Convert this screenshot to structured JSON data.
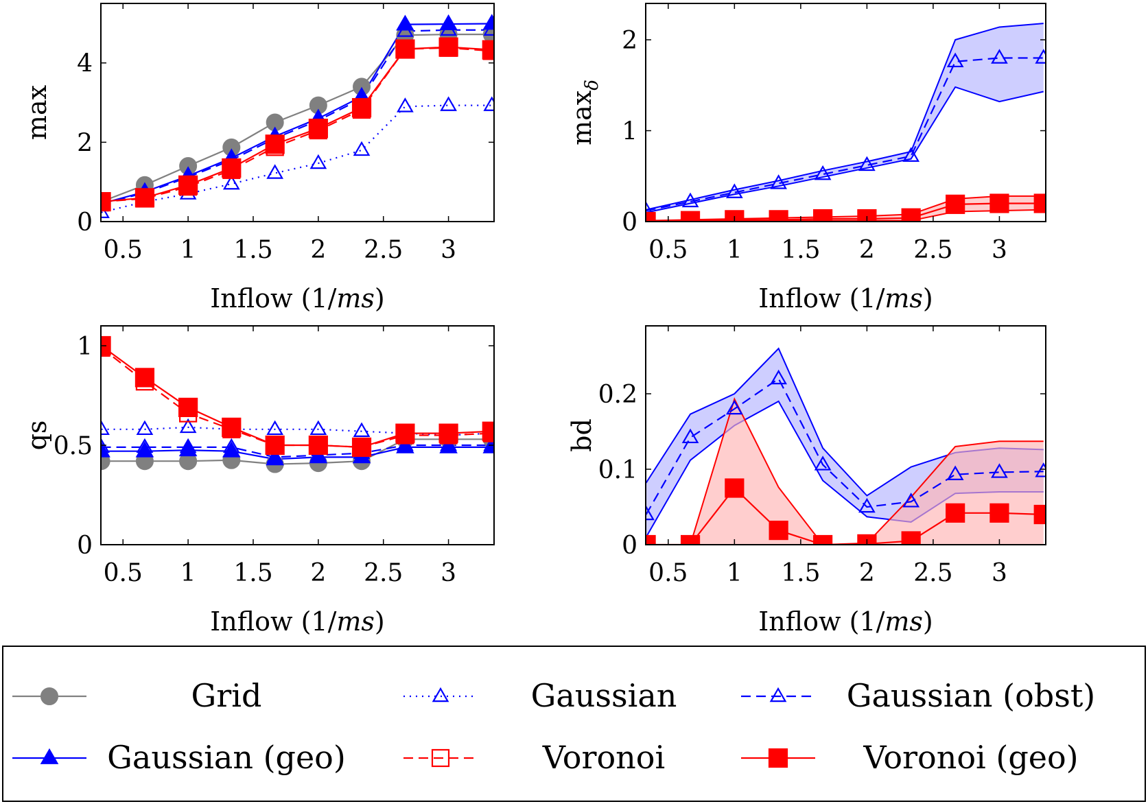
{
  "x": [
    0.333,
    0.667,
    1.0,
    1.333,
    1.667,
    2.0,
    2.333,
    2.667,
    3.0,
    3.333
  ],
  "colors": {
    "grid": "#808080",
    "gaussian": "#0000ff",
    "voronoi": "#ff0000",
    "blue_fill": "#b3b3ff",
    "red_fill": "#ffb3b3"
  },
  "legend": {
    "items": [
      {
        "key": "grid",
        "label": "Grid"
      },
      {
        "key": "gaussian",
        "label": "Gaussian"
      },
      {
        "key": "gaussian_obst",
        "label": "Gaussian (obst)"
      },
      {
        "key": "gaussian_geo",
        "label": "Gaussian (geo)"
      },
      {
        "key": "voronoi",
        "label": "Voronoi"
      },
      {
        "key": "voronoi_geo",
        "label": "Voronoi (geo)"
      }
    ]
  },
  "chart_data": [
    {
      "id": "max",
      "type": "line",
      "xlabel": "Inflow (1/ms)",
      "ylabel": "max",
      "xlim": [
        0.33,
        3.35
      ],
      "ylim": [
        0,
        5.5
      ],
      "xticks": [
        0.5,
        1,
        1.5,
        2,
        2.5,
        3
      ],
      "xtick_labels": [
        "0.5",
        "1",
        "1.5",
        "2",
        "2.5",
        "3"
      ],
      "yticks": [
        0,
        2,
        4
      ],
      "ytick_labels": [
        "0",
        "2",
        "4"
      ],
      "series": [
        {
          "name": "Grid",
          "key": "grid",
          "values": [
            0.5,
            0.92,
            1.4,
            1.87,
            2.5,
            2.93,
            3.4,
            4.7,
            4.72,
            4.72
          ]
        },
        {
          "name": "Gaussian",
          "key": "gaussian",
          "values": [
            0.23,
            0.5,
            0.7,
            0.95,
            1.22,
            1.47,
            1.8,
            2.9,
            2.93,
            2.93
          ]
        },
        {
          "name": "Gaussian (obst)",
          "key": "gaussian_obst",
          "values": [
            0.45,
            0.72,
            1.12,
            1.55,
            2.1,
            2.55,
            3.1,
            4.8,
            4.83,
            4.83
          ]
        },
        {
          "name": "Gaussian (geo)",
          "key": "gaussian_geo",
          "values": [
            0.45,
            0.75,
            1.15,
            1.6,
            2.15,
            2.6,
            3.15,
            4.97,
            4.98,
            4.99
          ]
        },
        {
          "name": "Voronoi",
          "key": "voronoi",
          "values": [
            0.5,
            0.58,
            0.88,
            1.3,
            1.88,
            2.3,
            2.82,
            4.35,
            4.38,
            4.3
          ]
        },
        {
          "name": "Voronoi (geo)",
          "key": "voronoi_geo",
          "values": [
            0.5,
            0.6,
            0.92,
            1.35,
            1.95,
            2.35,
            2.87,
            4.35,
            4.4,
            4.33
          ]
        }
      ]
    },
    {
      "id": "max_delta",
      "type": "line",
      "xlabel": "Inflow (1/ms)",
      "ylabel": "max",
      "ylabel_subscript": "δ",
      "xlim": [
        0.33,
        3.35
      ],
      "ylim": [
        0,
        2.4
      ],
      "xticks": [
        0.5,
        1,
        1.5,
        2,
        2.5,
        3
      ],
      "xtick_labels": [
        "0.5",
        "1",
        "1.5",
        "2",
        "2.5",
        "3"
      ],
      "yticks": [
        0,
        1,
        2
      ],
      "ytick_labels": [
        "0",
        "1",
        "2"
      ],
      "series": [
        {
          "name": "Gaussian (obst)",
          "key": "gaussian_obst",
          "values": [
            0.12,
            0.22,
            0.32,
            0.42,
            0.52,
            0.62,
            0.72,
            1.76,
            1.8,
            1.8
          ]
        },
        {
          "name": "Gaussian (obst) upper",
          "key": "band_blue_hi",
          "values": [
            0.13,
            0.24,
            0.35,
            0.45,
            0.56,
            0.66,
            0.77,
            2.0,
            2.14,
            2.18
          ]
        },
        {
          "name": "Gaussian (obst) lower",
          "key": "band_blue_lo",
          "values": [
            0.1,
            0.2,
            0.3,
            0.39,
            0.49,
            0.59,
            0.69,
            1.48,
            1.32,
            1.43
          ]
        },
        {
          "name": "Voronoi (geo)",
          "key": "voronoi_geo",
          "values": [
            0.0,
            0.01,
            0.02,
            0.02,
            0.03,
            0.03,
            0.04,
            0.19,
            0.2,
            0.2
          ]
        },
        {
          "name": "Voronoi (geo) upper",
          "key": "band_red_hi",
          "values": [
            0.01,
            0.02,
            0.03,
            0.04,
            0.05,
            0.06,
            0.08,
            0.25,
            0.28,
            0.28
          ]
        },
        {
          "name": "Voronoi (geo) lower",
          "key": "band_red_lo",
          "values": [
            0.0,
            0.0,
            0.01,
            0.01,
            0.01,
            0.01,
            0.01,
            0.11,
            0.12,
            0.13
          ]
        }
      ]
    },
    {
      "id": "qs",
      "type": "line",
      "xlabel": "Inflow (1/ms)",
      "ylabel": "qs",
      "xlim": [
        0.33,
        3.35
      ],
      "ylim": [
        0,
        1.1
      ],
      "xticks": [
        0.5,
        1,
        1.5,
        2,
        2.5,
        3
      ],
      "xtick_labels": [
        "0.5",
        "1",
        "1.5",
        "2",
        "2.5",
        "3"
      ],
      "yticks": [
        0,
        0.5,
        1
      ],
      "ytick_labels": [
        "0",
        "0.5",
        "1"
      ],
      "series": [
        {
          "name": "Grid",
          "key": "grid",
          "values": [
            0.42,
            0.42,
            0.42,
            0.425,
            0.405,
            0.41,
            0.42,
            0.53,
            0.53,
            0.53
          ]
        },
        {
          "name": "Gaussian",
          "key": "gaussian",
          "values": [
            0.58,
            0.58,
            0.59,
            0.58,
            0.58,
            0.58,
            0.57,
            0.56,
            0.55,
            0.56
          ]
        },
        {
          "name": "Gaussian (obst)",
          "key": "gaussian_obst",
          "values": [
            0.49,
            0.49,
            0.49,
            0.49,
            0.44,
            0.45,
            0.46,
            0.5,
            0.5,
            0.5
          ]
        },
        {
          "name": "Gaussian (geo)",
          "key": "gaussian_geo",
          "values": [
            0.47,
            0.47,
            0.475,
            0.47,
            0.43,
            0.44,
            0.44,
            0.49,
            0.49,
            0.49
          ]
        },
        {
          "name": "Voronoi",
          "key": "voronoi",
          "values": [
            0.99,
            0.82,
            0.66,
            0.58,
            0.5,
            0.5,
            0.49,
            0.55,
            0.55,
            0.56
          ]
        },
        {
          "name": "Voronoi (geo)",
          "key": "voronoi_geo",
          "values": [
            1.0,
            0.84,
            0.69,
            0.59,
            0.5,
            0.5,
            0.49,
            0.56,
            0.56,
            0.57
          ]
        }
      ]
    },
    {
      "id": "bd",
      "type": "line",
      "xlabel": "Inflow (1/ms)",
      "ylabel": "bd",
      "xlim": [
        0.33,
        3.35
      ],
      "ylim": [
        0,
        0.29
      ],
      "xticks": [
        0.5,
        1,
        1.5,
        2,
        2.5,
        3
      ],
      "xtick_labels": [
        "0.5",
        "1",
        "1.5",
        "2",
        "2.5",
        "3"
      ],
      "yticks": [
        0,
        0.1,
        0.2
      ],
      "ytick_labels": [
        "0",
        "0.1",
        "0.2"
      ],
      "series": [
        {
          "name": "Gaussian (obst)",
          "key": "gaussian_obst",
          "values": [
            0.04,
            0.142,
            0.18,
            0.22,
            0.106,
            0.05,
            0.057,
            0.093,
            0.096,
            0.097
          ]
        },
        {
          "name": "Gaussian (obst) upper",
          "key": "band_blue_hi",
          "values": [
            0.082,
            0.173,
            0.2,
            0.26,
            0.128,
            0.065,
            0.103,
            0.122,
            0.128,
            0.126
          ]
        },
        {
          "name": "Gaussian (obst) lower",
          "key": "band_blue_lo",
          "values": [
            0.01,
            0.112,
            0.158,
            0.19,
            0.085,
            0.037,
            0.03,
            0.068,
            0.07,
            0.07
          ]
        },
        {
          "name": "Voronoi (geo)",
          "key": "voronoi_geo",
          "values": [
            0.0,
            0.0,
            0.075,
            0.019,
            0.0,
            0.001,
            0.005,
            0.042,
            0.042,
            0.04
          ]
        },
        {
          "name": "Voronoi (geo) upper",
          "key": "band_red_hi",
          "values": [
            0.0,
            0.0,
            0.193,
            0.076,
            0.0,
            0.002,
            0.063,
            0.13,
            0.137,
            0.137
          ]
        },
        {
          "name": "Voronoi (geo) lower",
          "key": "band_red_lo",
          "values": [
            0.0,
            0.0,
            0.0,
            0.0,
            0.0,
            0.0,
            0.0,
            0.0,
            0.0,
            0.0
          ]
        }
      ]
    }
  ]
}
